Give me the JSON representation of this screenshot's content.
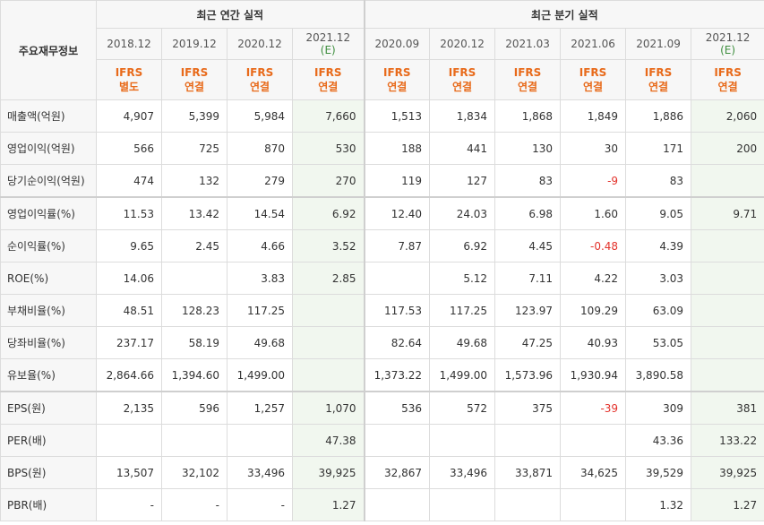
{
  "header": {
    "corner_label": "주요재무정보",
    "annual_group": "최근 연간 실적",
    "quarterly_group": "최근 분기 실적",
    "annual_periods": [
      {
        "period": "2018.12",
        "sub": "",
        "ifrs": [
          "IFRS",
          "별도"
        ]
      },
      {
        "period": "2019.12",
        "sub": "",
        "ifrs": [
          "IFRS",
          "연결"
        ]
      },
      {
        "period": "2020.12",
        "sub": "",
        "ifrs": [
          "IFRS",
          "연결"
        ]
      },
      {
        "period": "2021.12",
        "sub": "(E)",
        "ifrs": [
          "IFRS",
          "연결"
        ]
      }
    ],
    "quarter_periods": [
      {
        "period": "2020.09",
        "sub": "",
        "ifrs": [
          "IFRS",
          "연결"
        ]
      },
      {
        "period": "2020.12",
        "sub": "",
        "ifrs": [
          "IFRS",
          "연결"
        ]
      },
      {
        "period": "2021.03",
        "sub": "",
        "ifrs": [
          "IFRS",
          "연결"
        ]
      },
      {
        "period": "2021.06",
        "sub": "",
        "ifrs": [
          "IFRS",
          "연결"
        ]
      },
      {
        "period": "2021.09",
        "sub": "",
        "ifrs": [
          "IFRS",
          "연결"
        ]
      },
      {
        "period": "2021.12",
        "sub": "(E)",
        "ifrs": [
          "IFRS",
          "연결"
        ]
      }
    ]
  },
  "rows": [
    {
      "label": "매출액(억원)",
      "annual": [
        "4,907",
        "5,399",
        "5,984",
        "7,660"
      ],
      "quarter": [
        "1,513",
        "1,834",
        "1,868",
        "1,849",
        "1,886",
        "2,060"
      ]
    },
    {
      "label": "영업이익(억원)",
      "annual": [
        "566",
        "725",
        "870",
        "530"
      ],
      "quarter": [
        "188",
        "441",
        "130",
        "30",
        "171",
        "200"
      ]
    },
    {
      "label": "당기순이익(억원)",
      "annual": [
        "474",
        "132",
        "279",
        "270"
      ],
      "quarter": [
        "119",
        "127",
        "83",
        "-9",
        "83",
        ""
      ]
    },
    {
      "label": "영업이익률(%)",
      "annual": [
        "11.53",
        "13.42",
        "14.54",
        "6.92"
      ],
      "quarter": [
        "12.40",
        "24.03",
        "6.98",
        "1.60",
        "9.05",
        "9.71"
      ]
    },
    {
      "label": "순이익률(%)",
      "annual": [
        "9.65",
        "2.45",
        "4.66",
        "3.52"
      ],
      "quarter": [
        "7.87",
        "6.92",
        "4.45",
        "-0.48",
        "4.39",
        ""
      ]
    },
    {
      "label": "ROE(%)",
      "annual": [
        "14.06",
        "",
        "3.83",
        "2.85"
      ],
      "quarter": [
        "",
        "5.12",
        "7.11",
        "4.22",
        "3.03",
        ""
      ]
    },
    {
      "label": "부채비율(%)",
      "annual": [
        "48.51",
        "128.23",
        "117.25",
        ""
      ],
      "quarter": [
        "117.53",
        "117.25",
        "123.97",
        "109.29",
        "63.09",
        ""
      ]
    },
    {
      "label": "당좌비율(%)",
      "annual": [
        "237.17",
        "58.19",
        "49.68",
        ""
      ],
      "quarter": [
        "82.64",
        "49.68",
        "47.25",
        "40.93",
        "53.05",
        ""
      ]
    },
    {
      "label": "유보율(%)",
      "annual": [
        "2,864.66",
        "1,394.60",
        "1,499.00",
        ""
      ],
      "quarter": [
        "1,373.22",
        "1,499.00",
        "1,573.96",
        "1,930.94",
        "3,890.58",
        ""
      ]
    },
    {
      "label": "EPS(원)",
      "annual": [
        "2,135",
        "596",
        "1,257",
        "1,070"
      ],
      "quarter": [
        "536",
        "572",
        "375",
        "-39",
        "309",
        "381"
      ]
    },
    {
      "label": "PER(배)",
      "annual": [
        "",
        "",
        "",
        "47.38"
      ],
      "quarter": [
        "",
        "",
        "",
        "",
        "43.36",
        "133.22"
      ]
    },
    {
      "label": "BPS(원)",
      "annual": [
        "13,507",
        "32,102",
        "33,496",
        "39,925"
      ],
      "quarter": [
        "32,867",
        "33,496",
        "33,871",
        "34,625",
        "39,529",
        "39,925"
      ]
    },
    {
      "label": "PBR(배)",
      "annual": [
        "-",
        "-",
        "-",
        "1.27"
      ],
      "quarter": [
        "",
        "",
        "",
        "",
        "1.32",
        "1.27"
      ]
    }
  ],
  "colors": {
    "ifrs_text": "#e86a1a",
    "negative_text": "#e3322b",
    "estimate_background": "#f1f7ef",
    "header_background": "#f7f7f7"
  }
}
